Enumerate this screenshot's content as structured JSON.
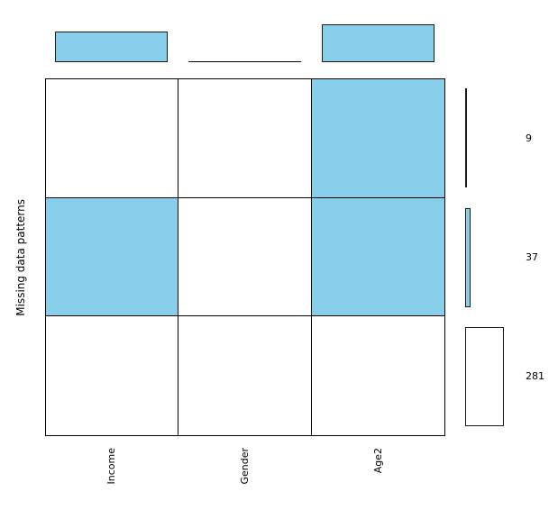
{
  "chart_data": {
    "type": "heatmap",
    "title": "",
    "xlabel": "",
    "ylabel": "Missing data patterns",
    "variables": [
      "Income",
      "Gender",
      "Age2"
    ],
    "patterns": [
      {
        "count": 9,
        "missing": [
          0,
          0,
          1
        ]
      },
      {
        "count": 37,
        "missing": [
          1,
          0,
          1
        ]
      },
      {
        "count": 281,
        "missing": [
          0,
          0,
          0
        ]
      }
    ],
    "pattern_count_labels": [
      "9",
      "37",
      "281"
    ],
    "variable_missing_counts": [
      37,
      0,
      46
    ],
    "colors": {
      "missing_fill": "#87CEEB",
      "observed_fill": "#FFFFFF",
      "edge": "#1a1a1a",
      "grid_line": "#000000"
    },
    "grid": true,
    "legend_position": "none"
  }
}
